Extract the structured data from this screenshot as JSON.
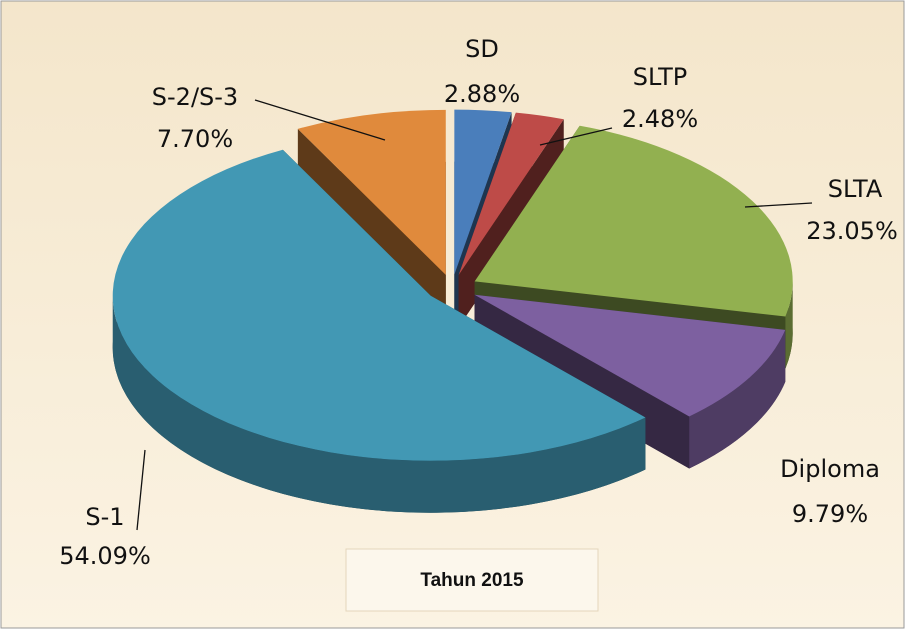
{
  "chart_data": {
    "type": "pie3d",
    "title": "Tahun 2015",
    "categories": [
      "SD",
      "SLTP",
      "SLTA",
      "Diploma",
      "S-1",
      "S-2/S-3"
    ],
    "values": [
      2.88,
      2.48,
      23.05,
      9.79,
      54.09,
      7.7
    ],
    "value_labels": [
      "2.88%",
      "2.48%",
      "23.05%",
      "9.79%",
      "54.09%",
      "7.70%"
    ],
    "colors": [
      "#4a7ebb",
      "#be4b48",
      "#92b050",
      "#7d60a0",
      "#4298b4",
      "#e08a3c"
    ]
  }
}
